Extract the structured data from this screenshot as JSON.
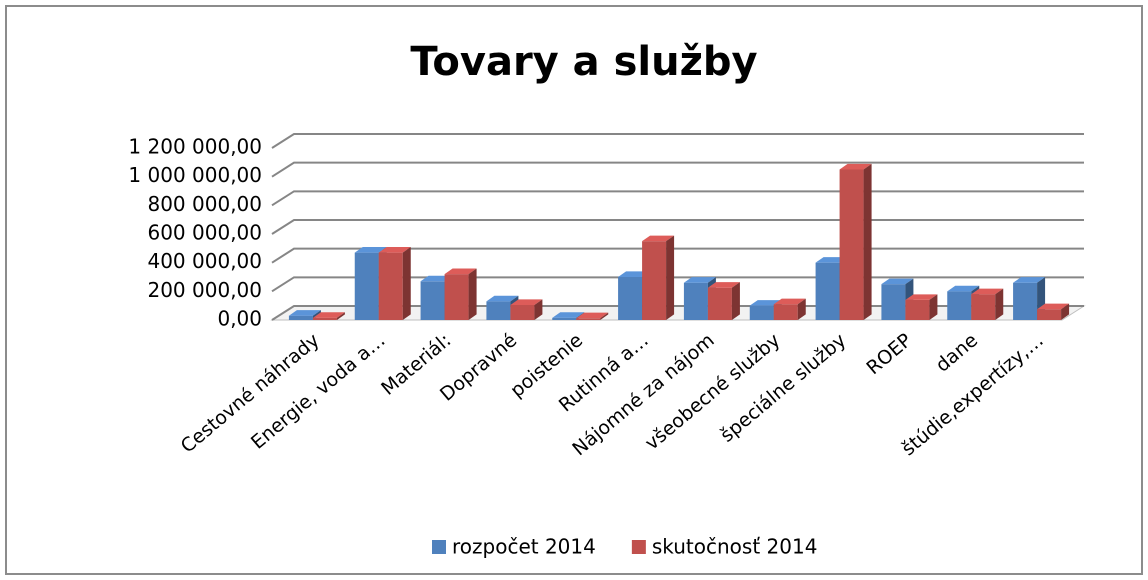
{
  "chart_data": {
    "type": "bar3d",
    "title": "Tovary a služby",
    "categories": [
      "Cestovné náhrady",
      "Energie, voda a…",
      "Materiál:",
      "Dopravné",
      "poistenie",
      "Rutinná a…",
      "Nájomné za nájom",
      "všeobecné služby",
      "špeciálne služby",
      "ROEP",
      "dane",
      "štúdie,expertízy,…"
    ],
    "series": [
      {
        "name": "rozpočet 2014",
        "color": "#4f81bd",
        "values": [
          30000,
          470000,
          270000,
          130000,
          15000,
          300000,
          260000,
          100000,
          400000,
          250000,
          200000,
          260000
        ]
      },
      {
        "name": "skutočnosť 2014",
        "color": "#c0504d",
        "values": [
          15000,
          470000,
          320000,
          105000,
          12000,
          550000,
          225000,
          110000,
          1050000,
          140000,
          180000,
          75000
        ]
      }
    ],
    "ylim": [
      0,
      1200000
    ],
    "yticks": [
      {
        "value": 0,
        "label": "0,00"
      },
      {
        "value": 200000,
        "label": "200 000,00"
      },
      {
        "value": 400000,
        "label": "400 000,00"
      },
      {
        "value": 600000,
        "label": "600 000,00"
      },
      {
        "value": 800000,
        "label": "800 000,00"
      },
      {
        "value": 1000000,
        "label": "1 000 000,00"
      },
      {
        "value": 1200000,
        "label": "1 200 000,00"
      }
    ],
    "grid": true,
    "legend": "bottom"
  }
}
